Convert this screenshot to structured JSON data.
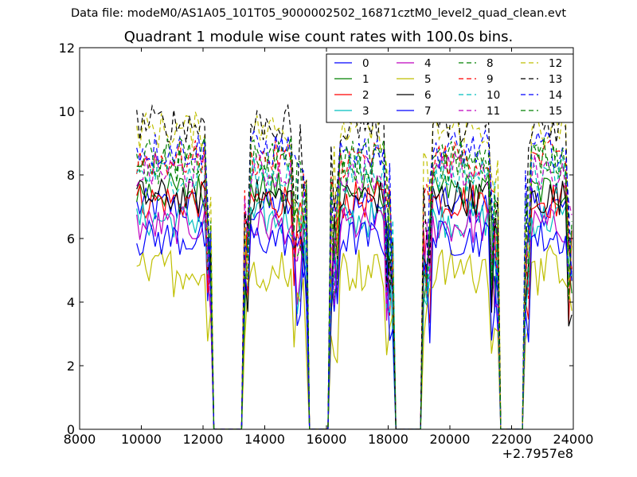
{
  "header": {
    "data_file": "Data file: modeM0/AS1A05_101T05_9000002502_16871cztM0_level2_quad_clean.evt",
    "title": "Quadrant 1 module wise count rates with 100.0s bins."
  },
  "chart_data": {
    "type": "line",
    "title": "Quadrant 1 module wise count rates with 100.0s bins.",
    "xlabel": "",
    "ylabel": "",
    "x_offset_label": "+2.7957e8",
    "xlim": [
      8000,
      24000
    ],
    "ylim": [
      0,
      12
    ],
    "x_ticks": [
      "8000",
      "10000",
      "12000",
      "14000",
      "16000",
      "18000",
      "20000",
      "22000",
      "24000"
    ],
    "y_ticks": [
      "0",
      "2",
      "4",
      "6",
      "8",
      "10",
      "12"
    ],
    "grid": false,
    "legend": {
      "placement": "top-right",
      "columns": 4
    },
    "gti_segments": [
      [
        9850,
        12300
      ],
      [
        13300,
        15400
      ],
      [
        16150,
        18150
      ],
      [
        19150,
        21550
      ],
      [
        22400,
        24000
      ]
    ],
    "series": [
      {
        "name": "0",
        "color": "#0000ff",
        "dash": "solid",
        "level": 7.0
      },
      {
        "name": "1",
        "color": "#008000",
        "dash": "solid",
        "level": 7.5
      },
      {
        "name": "2",
        "color": "#ff0000",
        "dash": "solid",
        "level": 7.2
      },
      {
        "name": "3",
        "color": "#00bfbf",
        "dash": "solid",
        "level": 6.6
      },
      {
        "name": "4",
        "color": "#bf00bf",
        "dash": "solid",
        "level": 6.4
      },
      {
        "name": "5",
        "color": "#bfbf00",
        "dash": "solid",
        "level": 5.2
      },
      {
        "name": "6",
        "color": "#000000",
        "dash": "solid",
        "level": 7.3
      },
      {
        "name": "7",
        "color": "#0000ff",
        "dash": "solid",
        "level": 6.0
      },
      {
        "name": "8",
        "color": "#008000",
        "dash": "dashed",
        "level": 8.3
      },
      {
        "name": "9",
        "color": "#ff0000",
        "dash": "dashed",
        "level": 8.5
      },
      {
        "name": "10",
        "color": "#00bfbf",
        "dash": "dashed",
        "level": 8.0
      },
      {
        "name": "11",
        "color": "#bf00bf",
        "dash": "dashed",
        "level": 8.1
      },
      {
        "name": "12",
        "color": "#bfbf00",
        "dash": "dashed",
        "level": 9.4
      },
      {
        "name": "13",
        "color": "#000000",
        "dash": "dashed",
        "level": 9.6
      },
      {
        "name": "14",
        "color": "#0000ff",
        "dash": "dashed",
        "level": 8.8
      },
      {
        "name": "15",
        "color": "#008000",
        "dash": "dashed",
        "level": 8.6
      }
    ]
  }
}
